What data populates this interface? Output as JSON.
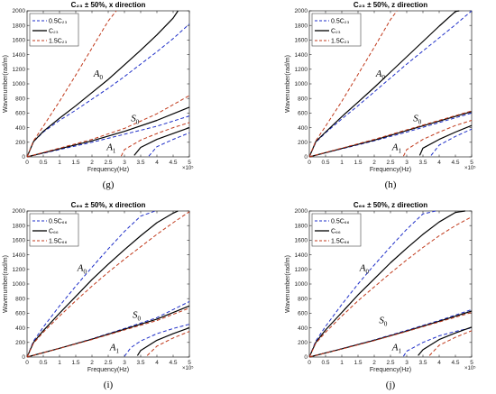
{
  "figure": {
    "colors": {
      "low": "#1f2fc8",
      "base": "#000000",
      "high": "#c0391b"
    },
    "exponent_label": "×10⁵"
  },
  "chart_data": [
    {
      "type": "line",
      "panel_label": "(g)",
      "title": "C₂₃ ± 50%, x direction",
      "xlabel": "Frequency(Hz)",
      "ylabel": "Wavenumber(rad/m)",
      "xlim": [
        0,
        5
      ],
      "ylim": [
        0,
        2000
      ],
      "x_multiplier": 100000,
      "xticks": [
        "0",
        "0.5",
        "1",
        "1.5",
        "2",
        "2.5",
        "3",
        "3.5",
        "4",
        "4.5",
        "5"
      ],
      "yticks": [
        "0",
        "200",
        "400",
        "600",
        "800",
        "1000",
        "1200",
        "1400",
        "1600",
        "1800",
        "2000"
      ],
      "legend": [
        "0.5C₂₃",
        "C₂₃",
        "1.5C₂₃"
      ],
      "legend_position": "top-left",
      "annotations": [
        {
          "text": "A",
          "sub": "0",
          "x": 2.05,
          "y": 1100
        },
        {
          "text": "S",
          "sub": "0",
          "x": 3.2,
          "y": 490
        },
        {
          "text": "A",
          "sub": "1",
          "x": 2.45,
          "y": 90
        }
      ],
      "series": [
        {
          "name": "0.5C₂₃",
          "mode": "A0",
          "style": "low",
          "x": [
            0,
            0.2,
            0.5,
            1,
            1.5,
            2,
            2.5,
            3,
            3.5,
            4,
            4.5,
            5
          ],
          "y": [
            0,
            210,
            340,
            500,
            640,
            790,
            940,
            1100,
            1270,
            1440,
            1620,
            1820
          ]
        },
        {
          "name": "C₂₃",
          "mode": "A0",
          "style": "base",
          "x": [
            0,
            0.2,
            0.5,
            1,
            1.5,
            2,
            2.5,
            3,
            3.5,
            4,
            4.5,
            4.65
          ],
          "y": [
            0,
            210,
            350,
            530,
            700,
            880,
            1060,
            1260,
            1460,
            1670,
            1900,
            2000
          ]
        },
        {
          "name": "1.5C₂₃",
          "mode": "A0",
          "style": "high",
          "x": [
            0,
            0.2,
            0.5,
            1,
            1.5,
            2,
            2.5,
            2.75
          ],
          "y": [
            0,
            220,
            420,
            760,
            1120,
            1490,
            1860,
            2000
          ]
        },
        {
          "name": "0.5C₂₃",
          "mode": "S0",
          "style": "low",
          "x": [
            0,
            1,
            2,
            3,
            4,
            5
          ],
          "y": [
            0,
            100,
            200,
            310,
            420,
            560
          ]
        },
        {
          "name": "C₂₃",
          "mode": "S0",
          "style": "base",
          "x": [
            0,
            1,
            2,
            3,
            4,
            5
          ],
          "y": [
            0,
            110,
            220,
            350,
            500,
            680
          ]
        },
        {
          "name": "1.5C₂₃",
          "mode": "S0",
          "style": "high",
          "x": [
            0,
            1,
            2,
            3,
            4,
            5
          ],
          "y": [
            0,
            120,
            240,
            390,
            590,
            840
          ]
        },
        {
          "name": "0.5C₂₃",
          "mode": "A1",
          "style": "low",
          "x": [
            3.75,
            4,
            4.5,
            5
          ],
          "y": [
            10,
            140,
            240,
            330
          ]
        },
        {
          "name": "C₂₃",
          "mode": "A1",
          "style": "base",
          "x": [
            3.3,
            3.5,
            4,
            4.5,
            5
          ],
          "y": [
            20,
            130,
            240,
            320,
            400
          ]
        },
        {
          "name": "1.5C₂₃",
          "mode": "A1",
          "style": "high",
          "x": [
            2.9,
            3,
            3.5,
            4,
            4.5,
            5
          ],
          "y": [
            10,
            100,
            230,
            320,
            400,
            470
          ]
        }
      ]
    },
    {
      "type": "line",
      "panel_label": "(h)",
      "title": "C₂₃ ± 50%, z direction",
      "xlabel": "Frequency(Hz)",
      "ylabel": "Wavenumber(rad/m)",
      "xlim": [
        0,
        5
      ],
      "ylim": [
        0,
        2000
      ],
      "x_multiplier": 100000,
      "xticks": [
        "0",
        "0.5",
        "1",
        "1.5",
        "2",
        "2.5",
        "3",
        "3.5",
        "4",
        "4.5",
        "5"
      ],
      "yticks": [
        "0",
        "200",
        "400",
        "600",
        "800",
        "1000",
        "1200",
        "1400",
        "1600",
        "1800",
        "2000"
      ],
      "legend": [
        "0.5C₂₃",
        "C₂₃",
        "1.5C₂₃"
      ],
      "legend_position": "top-left",
      "annotations": [
        {
          "text": "A",
          "sub": "0",
          "x": 2.05,
          "y": 1100
        },
        {
          "text": "S",
          "sub": "0",
          "x": 3.2,
          "y": 490
        },
        {
          "text": "A",
          "sub": "1",
          "x": 2.55,
          "y": 90
        }
      ],
      "series": [
        {
          "name": "0.5C₂₃",
          "mode": "A0",
          "style": "low",
          "x": [
            0,
            0.2,
            0.5,
            1,
            1.5,
            2,
            2.5,
            3,
            3.5,
            4,
            4.5,
            5
          ],
          "y": [
            0,
            200,
            330,
            520,
            700,
            890,
            1080,
            1270,
            1450,
            1630,
            1810,
            2000
          ]
        },
        {
          "name": "C₂₃",
          "mode": "A0",
          "style": "base",
          "x": [
            0,
            0.2,
            0.5,
            1,
            1.5,
            2,
            2.5,
            3,
            3.5,
            4,
            4.5,
            4.62
          ],
          "y": [
            0,
            210,
            340,
            550,
            750,
            950,
            1160,
            1370,
            1580,
            1790,
            1990,
            2000
          ]
        },
        {
          "name": "1.5C₂₃",
          "mode": "A0",
          "style": "high",
          "x": [
            0,
            0.2,
            0.5,
            1,
            1.5,
            2,
            2.5,
            2.7
          ],
          "y": [
            0,
            220,
            420,
            760,
            1130,
            1500,
            1880,
            2000
          ]
        },
        {
          "name": "0.5C₂₃",
          "mode": "S0",
          "style": "low",
          "x": [
            0,
            1,
            2,
            3,
            4,
            5
          ],
          "y": [
            0,
            110,
            220,
            340,
            470,
            600
          ]
        },
        {
          "name": "C₂₃",
          "mode": "S0",
          "style": "base",
          "x": [
            0,
            1,
            2,
            3,
            4,
            5
          ],
          "y": [
            0,
            115,
            230,
            360,
            490,
            620
          ]
        },
        {
          "name": "1.5C₂₃",
          "mode": "S0",
          "style": "high",
          "x": [
            0,
            1,
            2,
            3,
            4,
            5
          ],
          "y": [
            0,
            120,
            240,
            370,
            500,
            630
          ]
        },
        {
          "name": "0.5C₂₃",
          "mode": "A1",
          "style": "low",
          "x": [
            3.75,
            4,
            4.5,
            5
          ],
          "y": [
            20,
            160,
            280,
            380
          ]
        },
        {
          "name": "C₂₃",
          "mode": "A1",
          "style": "base",
          "x": [
            3.4,
            3.5,
            4,
            4.5,
            5
          ],
          "y": [
            20,
            120,
            240,
            340,
            430
          ]
        },
        {
          "name": "1.5C₂₃",
          "mode": "A1",
          "style": "high",
          "x": [
            2.9,
            3,
            3.5,
            4,
            4.5,
            5
          ],
          "y": [
            10,
            100,
            240,
            340,
            430,
            500
          ]
        }
      ]
    },
    {
      "type": "line",
      "panel_label": "(i)",
      "title": "C₆₆ ± 50%, x direction",
      "xlabel": "Frequency(Hz)",
      "ylabel": "Wavenumber(rad/m)",
      "xlim": [
        0,
        5
      ],
      "ylim": [
        0,
        2000
      ],
      "x_multiplier": 100000,
      "xticks": [
        "0",
        "0.5",
        "1",
        "1.5",
        "2",
        "2.5",
        "3",
        "3.5",
        "4",
        "4.5",
        "5"
      ],
      "yticks": [
        "0",
        "200",
        "400",
        "600",
        "800",
        "1000",
        "1200",
        "1400",
        "1600",
        "1800",
        "2000"
      ],
      "legend": [
        "0.5C₆₆",
        "C₆₆",
        "1.5C₆₆"
      ],
      "legend_position": "top-left",
      "annotations": [
        {
          "text": "A",
          "sub": "0",
          "x": 1.55,
          "y": 1180
        },
        {
          "text": "S",
          "sub": "0",
          "x": 3.25,
          "y": 540
        },
        {
          "text": "A",
          "sub": "1",
          "x": 2.55,
          "y": 90
        }
      ],
      "series": [
        {
          "name": "0.5C₆₆",
          "mode": "A0",
          "style": "low",
          "x": [
            0,
            0.2,
            0.5,
            1,
            1.5,
            2,
            2.5,
            3,
            3.5,
            3.95
          ],
          "y": [
            0,
            220,
            410,
            700,
            970,
            1230,
            1480,
            1720,
            1930,
            2000
          ]
        },
        {
          "name": "C₆₆",
          "mode": "A0",
          "style": "base",
          "x": [
            0,
            0.2,
            0.5,
            1,
            1.5,
            2,
            2.5,
            3,
            3.5,
            4,
            4.5,
            4.65
          ],
          "y": [
            0,
            200,
            360,
            600,
            830,
            1060,
            1270,
            1470,
            1660,
            1840,
            1970,
            2000
          ]
        },
        {
          "name": "1.5C₆₆",
          "mode": "A0",
          "style": "high",
          "x": [
            0,
            0.2,
            0.5,
            1,
            1.5,
            2,
            2.5,
            3,
            3.5,
            4,
            4.5,
            5
          ],
          "y": [
            0,
            190,
            340,
            560,
            770,
            970,
            1160,
            1340,
            1510,
            1680,
            1840,
            1990
          ]
        },
        {
          "name": "0.5C₆₆",
          "mode": "S0",
          "style": "low",
          "x": [
            0,
            1,
            2,
            3,
            4,
            5
          ],
          "y": [
            0,
            120,
            250,
            390,
            540,
            760
          ]
        },
        {
          "name": "C₆₆",
          "mode": "S0",
          "style": "base",
          "x": [
            0,
            1,
            2,
            3,
            4,
            5
          ],
          "y": [
            0,
            120,
            245,
            380,
            520,
            700
          ]
        },
        {
          "name": "1.5C₆₆",
          "mode": "S0",
          "style": "high",
          "x": [
            0,
            1,
            2,
            3,
            4,
            5
          ],
          "y": [
            0,
            118,
            240,
            370,
            500,
            670
          ]
        },
        {
          "name": "0.5C₆₆",
          "mode": "A1",
          "style": "low",
          "x": [
            3,
            3.2,
            3.5,
            4,
            4.5,
            5
          ],
          "y": [
            10,
            130,
            220,
            320,
            390,
            450
          ]
        },
        {
          "name": "C₆₆",
          "mode": "A1",
          "style": "base",
          "x": [
            3.4,
            3.5,
            4,
            4.5,
            5
          ],
          "y": [
            20,
            90,
            230,
            320,
            400
          ]
        },
        {
          "name": "1.5C₆₆",
          "mode": "A1",
          "style": "high",
          "x": [
            3.7,
            4,
            4.5,
            5
          ],
          "y": [
            20,
            150,
            260,
            350
          ]
        }
      ]
    },
    {
      "type": "line",
      "panel_label": "(j)",
      "title": "C₆₆ ± 50%, z direction",
      "xlabel": "Frequency(Hz)",
      "ylabel": "Wavenumber(rad/m)",
      "xlim": [
        0,
        5
      ],
      "ylim": [
        0,
        2000
      ],
      "x_multiplier": 100000,
      "xticks": [
        "0",
        "0.5",
        "1",
        "1.5",
        "2",
        "2.5",
        "3",
        "3.5",
        "4",
        "4.5",
        "5"
      ],
      "yticks": [
        "0",
        "200",
        "400",
        "600",
        "800",
        "1000",
        "1200",
        "1400",
        "1600",
        "1800",
        "2000"
      ],
      "legend": [
        "0.5C₆₆",
        "C₆₆",
        "1.5C₆₆"
      ],
      "legend_position": "top-left",
      "annotations": [
        {
          "text": "A",
          "sub": "0",
          "x": 1.55,
          "y": 1180
        },
        {
          "text": "S",
          "sub": "0",
          "x": 2.15,
          "y": 460
        },
        {
          "text": "A",
          "sub": "1",
          "x": 2.55,
          "y": 90
        }
      ],
      "series": [
        {
          "name": "0.5C₆₆",
          "mode": "A0",
          "style": "low",
          "x": [
            0,
            0.2,
            0.5,
            1,
            1.5,
            2,
            2.5,
            3,
            3.5,
            3.9
          ],
          "y": [
            0,
            220,
            420,
            720,
            1000,
            1260,
            1510,
            1750,
            1960,
            2000
          ]
        },
        {
          "name": "C₆₆",
          "mode": "A0",
          "style": "base",
          "x": [
            0,
            0.2,
            0.5,
            1,
            1.5,
            2,
            2.5,
            3,
            3.5,
            4,
            4.5,
            4.8
          ],
          "y": [
            0,
            200,
            370,
            610,
            850,
            1070,
            1290,
            1490,
            1680,
            1850,
            1980,
            2000
          ]
        },
        {
          "name": "1.5C₆₆",
          "mode": "A0",
          "style": "high",
          "x": [
            0,
            0.2,
            0.5,
            1,
            1.5,
            2,
            2.5,
            3,
            3.5,
            4,
            4.5,
            5
          ],
          "y": [
            0,
            190,
            340,
            560,
            770,
            960,
            1150,
            1330,
            1500,
            1660,
            1800,
            1920
          ]
        },
        {
          "name": "0.5C₆₆",
          "mode": "S0",
          "style": "low",
          "x": [
            0,
            1,
            2,
            3,
            4,
            5
          ],
          "y": [
            0,
            115,
            235,
            365,
            500,
            650
          ]
        },
        {
          "name": "C₆₆",
          "mode": "S0",
          "style": "base",
          "x": [
            0,
            1,
            2,
            3,
            4,
            5
          ],
          "y": [
            0,
            112,
            230,
            355,
            490,
            630
          ]
        },
        {
          "name": "1.5C₆₆",
          "mode": "S0",
          "style": "high",
          "x": [
            0,
            1,
            2,
            3,
            4,
            5
          ],
          "y": [
            0,
            110,
            225,
            350,
            480,
            610
          ]
        },
        {
          "name": "0.5C₆₆",
          "mode": "A1",
          "style": "low",
          "x": [
            2.9,
            3,
            3.5,
            4,
            4.5,
            5
          ],
          "y": [
            10,
            80,
            200,
            290,
            350,
            400
          ]
        },
        {
          "name": "C₆₆",
          "mode": "A1",
          "style": "base",
          "x": [
            3.35,
            3.5,
            4,
            4.5,
            5
          ],
          "y": [
            20,
            100,
            240,
            330,
            410
          ]
        },
        {
          "name": "1.5C₆₆",
          "mode": "A1",
          "style": "high",
          "x": [
            3.7,
            4,
            4.5,
            5
          ],
          "y": [
            20,
            160,
            270,
            360
          ]
        }
      ]
    }
  ]
}
